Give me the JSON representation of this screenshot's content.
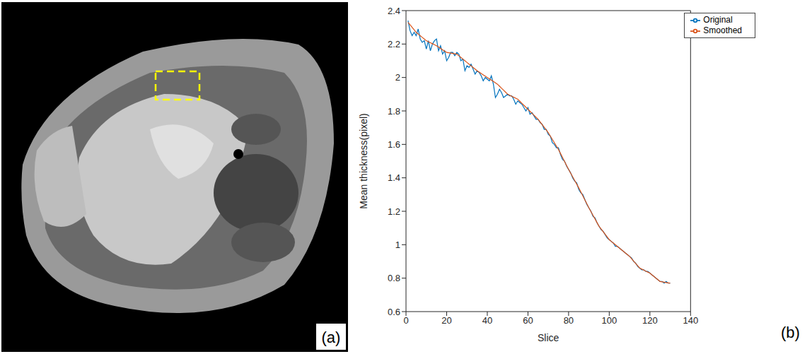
{
  "panel_labels": [
    "(a)",
    "(b)"
  ],
  "chart_data": {
    "type": "line",
    "x_label": "Slice",
    "y_label": "Mean thickness(pixel)",
    "xlim": [
      0,
      140
    ],
    "xticks": [
      0,
      20,
      40,
      60,
      80,
      100,
      120,
      140
    ],
    "ylim": [
      0.6,
      2.4
    ],
    "yticks": [
      0.6,
      0.8,
      1,
      1.2,
      1.4,
      1.6,
      1.8,
      2,
      2.2,
      2.4
    ],
    "legend": "upper right",
    "x": [
      1,
      2,
      3,
      4,
      5,
      6,
      7,
      8,
      9,
      10,
      11,
      12,
      13,
      14,
      15,
      16,
      17,
      18,
      19,
      20,
      21,
      22,
      23,
      24,
      25,
      26,
      27,
      28,
      29,
      30,
      31,
      32,
      33,
      34,
      35,
      36,
      37,
      38,
      39,
      40,
      41,
      42,
      43,
      44,
      45,
      46,
      47,
      48,
      49,
      50,
      51,
      52,
      53,
      54,
      55,
      56,
      57,
      58,
      59,
      60,
      61,
      62,
      63,
      64,
      65,
      66,
      67,
      68,
      69,
      70,
      71,
      72,
      73,
      74,
      75,
      76,
      77,
      78,
      79,
      80,
      81,
      82,
      83,
      84,
      85,
      86,
      87,
      88,
      89,
      90,
      91,
      92,
      93,
      94,
      95,
      96,
      97,
      98,
      99,
      100,
      101,
      102,
      103,
      104,
      105,
      106,
      107,
      108,
      109,
      110,
      111,
      112,
      113,
      114,
      115,
      116,
      117,
      118,
      119,
      120,
      121,
      122,
      123,
      124,
      125,
      126,
      127,
      128,
      129,
      130
    ],
    "series": [
      {
        "name": "Original",
        "color": "#0072bd",
        "values": [
          2.34,
          2.28,
          2.25,
          2.27,
          2.25,
          2.29,
          2.23,
          2.21,
          2.22,
          2.17,
          2.22,
          2.16,
          2.2,
          2.22,
          2.23,
          2.16,
          2.19,
          2.14,
          2.16,
          2.1,
          2.12,
          2.15,
          2.15,
          2.13,
          2.15,
          2.14,
          2.1,
          2.11,
          2.04,
          2.07,
          2.06,
          2.08,
          2.05,
          2.02,
          2.04,
          2.03,
          2.01,
          1.98,
          2.0,
          1.99,
          1.98,
          2.01,
          1.96,
          1.88,
          1.9,
          1.93,
          1.91,
          1.88,
          1.89,
          1.9,
          1.89,
          1.89,
          1.87,
          1.84,
          1.86,
          1.85,
          1.84,
          1.82,
          1.8,
          1.82,
          1.78,
          1.79,
          1.77,
          1.75,
          1.75,
          1.73,
          1.72,
          1.69,
          1.69,
          1.66,
          1.65,
          1.61,
          1.6,
          1.58,
          1.58,
          1.54,
          1.51,
          1.5,
          1.47,
          1.45,
          1.43,
          1.4,
          1.38,
          1.37,
          1.33,
          1.31,
          1.3,
          1.27,
          1.24,
          1.22,
          1.2,
          1.17,
          1.16,
          1.13,
          1.11,
          1.09,
          1.08,
          1.06,
          1.04,
          1.03,
          1.02,
          1.01,
          0.99,
          0.99,
          0.98,
          0.97,
          0.96,
          0.95,
          0.94,
          0.93,
          0.92,
          0.9,
          0.89,
          0.87,
          0.86,
          0.85,
          0.85,
          0.84,
          0.84,
          0.83,
          0.82,
          0.81,
          0.8,
          0.79,
          0.78,
          0.78,
          0.77,
          0.78,
          0.77,
          0.77
        ]
      },
      {
        "name": "Smoothed",
        "color": "#d95319",
        "values": [
          2.33,
          2.315,
          2.3,
          2.285,
          2.27,
          2.26,
          2.25,
          2.24,
          2.23,
          2.22,
          2.214,
          2.208,
          2.202,
          2.196,
          2.19,
          2.182,
          2.174,
          2.166,
          2.158,
          2.15,
          2.148,
          2.146,
          2.144,
          2.142,
          2.14,
          2.13,
          2.12,
          2.11,
          2.1,
          2.09,
          2.08,
          2.07,
          2.06,
          2.05,
          2.04,
          2.032,
          2.024,
          2.016,
          2.008,
          2.0,
          1.992,
          1.984,
          1.976,
          1.968,
          1.96,
          1.948,
          1.936,
          1.924,
          1.912,
          1.9,
          1.894,
          1.888,
          1.882,
          1.876,
          1.87,
          1.858,
          1.846,
          1.834,
          1.822,
          1.81,
          1.798,
          1.786,
          1.774,
          1.762,
          1.75,
          1.734,
          1.718,
          1.702,
          1.686,
          1.67,
          1.65,
          1.63,
          1.61,
          1.59,
          1.57,
          1.546,
          1.522,
          1.498,
          1.474,
          1.45,
          1.428,
          1.406,
          1.384,
          1.362,
          1.34,
          1.316,
          1.292,
          1.268,
          1.244,
          1.22,
          1.198,
          1.176,
          1.154,
          1.132,
          1.11,
          1.094,
          1.078,
          1.062,
          1.046,
          1.03,
          1.02,
          1.01,
          1.0,
          0.99,
          0.98,
          0.97,
          0.96,
          0.95,
          0.94,
          0.93,
          0.916,
          0.902,
          0.888,
          0.874,
          0.86,
          0.854,
          0.848,
          0.842,
          0.836,
          0.83,
          0.82,
          0.81,
          0.8,
          0.79,
          0.78,
          0.778,
          0.776,
          0.774,
          0.772,
          0.77
        ]
      }
    ]
  }
}
